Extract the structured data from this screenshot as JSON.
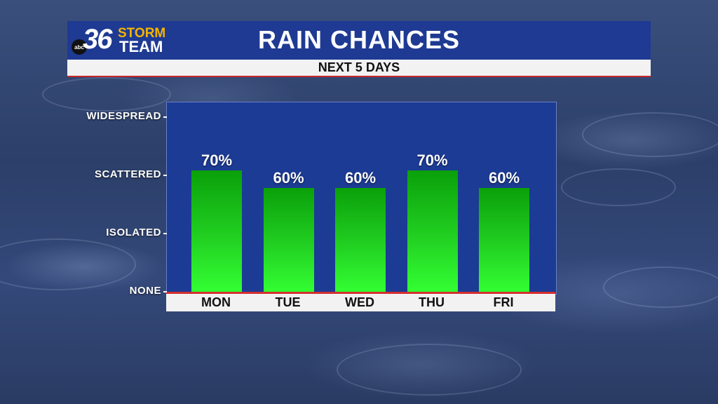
{
  "header": {
    "logo": {
      "network": "abc",
      "number": "36",
      "line1": "STORM",
      "line2": "TEAM"
    },
    "title": "RAIN CHANCES",
    "subtitle": "NEXT 5 DAYS"
  },
  "colors": {
    "header_bg": "#1f3a93",
    "accent_red": "#c62828",
    "plot_bg": "#1c3b95",
    "bar_top": "#0aa00a",
    "bar_bottom": "#33ff33",
    "logo_gold": "#f4b400"
  },
  "chart_data": {
    "type": "bar",
    "title": "RAIN CHANCES",
    "subtitle": "NEXT 5 DAYS",
    "categories": [
      "MON",
      "TUE",
      "WED",
      "THU",
      "FRI"
    ],
    "values": [
      70,
      60,
      60,
      70,
      60
    ],
    "value_labels": [
      "70%",
      "60%",
      "60%",
      "70%",
      "60%"
    ],
    "y_tick_labels": [
      "WIDESPREAD",
      "SCATTERED",
      "ISOLATED",
      "NONE"
    ],
    "y_tick_values": [
      100,
      66.7,
      33.3,
      0
    ],
    "ylim": [
      0,
      100
    ],
    "grid": false,
    "legend": "none"
  }
}
